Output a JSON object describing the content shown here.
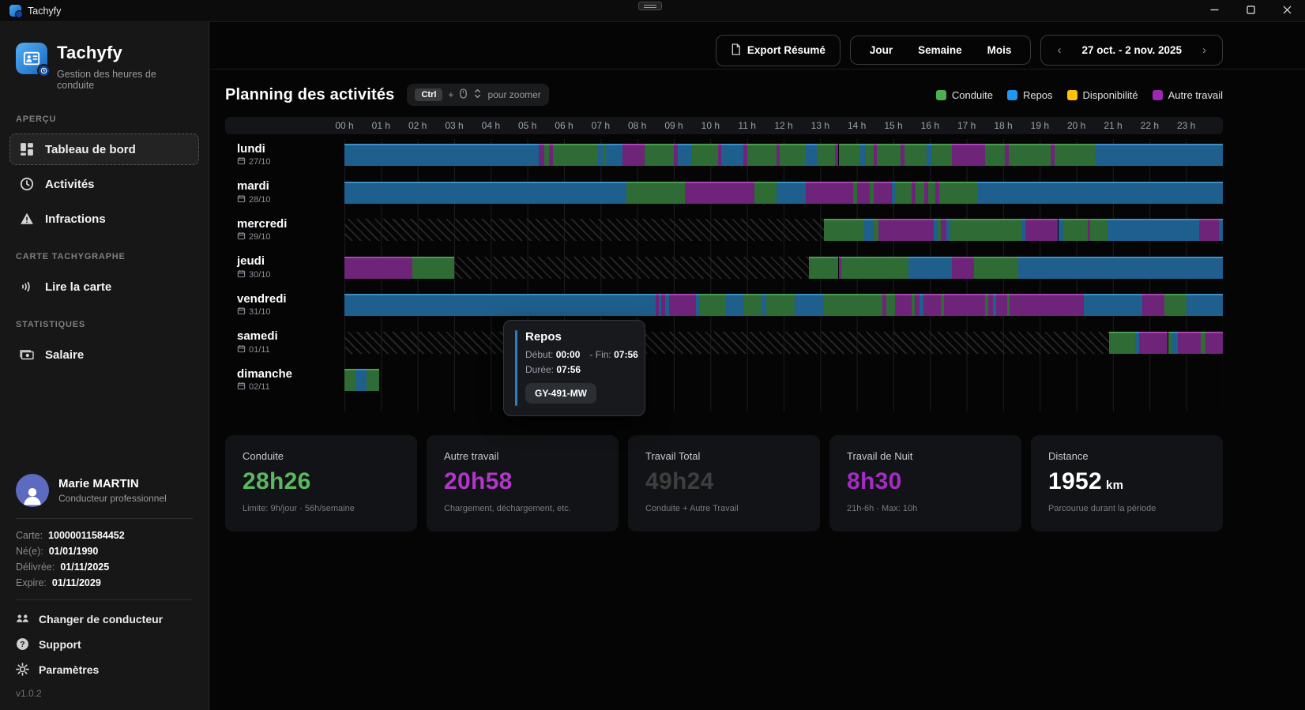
{
  "window": {
    "title": "Tachyfy"
  },
  "sidebar": {
    "app_name": "Tachyfy",
    "app_subtitle": "Gestion des heures de conduite",
    "sections": [
      {
        "label": "APERÇU",
        "items": [
          {
            "icon": "dashboard-icon",
            "label": "Tableau de bord",
            "active": true
          },
          {
            "icon": "clock-icon",
            "label": "Activités",
            "active": false
          },
          {
            "icon": "warning-icon",
            "label": "Infractions",
            "active": false
          }
        ]
      },
      {
        "label": "CARTE TACHYGRAPHE",
        "items": [
          {
            "icon": "contactless-icon",
            "label": "Lire la carte",
            "active": false
          }
        ]
      },
      {
        "label": "STATISTIQUES",
        "items": [
          {
            "icon": "banknote-icon",
            "label": "Salaire",
            "active": false
          }
        ]
      }
    ],
    "profile": {
      "name": "Marie MARTIN",
      "role": "Conducteur professionnel",
      "details": [
        {
          "label": "Carte:",
          "value": "10000011584452"
        },
        {
          "label": "Né(e):",
          "value": "01/01/1990"
        },
        {
          "label": "Délivrée:",
          "value": "01/11/2025"
        },
        {
          "label": "Expire:",
          "value": "01/11/2029"
        }
      ],
      "links": [
        {
          "icon": "switch-user-icon",
          "label": "Changer de conducteur"
        },
        {
          "icon": "help-icon",
          "label": "Support"
        },
        {
          "icon": "gear-icon",
          "label": "Paramètres"
        }
      ],
      "version": "v1.0.2"
    }
  },
  "header": {
    "export_label": "Export Résumé",
    "view_options": [
      "Jour",
      "Semaine",
      "Mois"
    ],
    "date_range": "27 oct. - 2 nov. 2025",
    "prev_glyph": "‹",
    "next_glyph": "›"
  },
  "chart_data": {
    "type": "timeline",
    "title": "Planning des activités",
    "zoom_hint": {
      "key": "Ctrl",
      "plus": "+",
      "text": "pour zoomer"
    },
    "legend": [
      {
        "key": "c",
        "label": "Conduite",
        "color": "#4caf50"
      },
      {
        "key": "r",
        "label": "Repos",
        "color": "#2196f3"
      },
      {
        "key": "d",
        "label": "Disponibilité",
        "color": "#ffc107"
      },
      {
        "key": "a",
        "label": "Autre travail",
        "color": "#9c27b0"
      }
    ],
    "bar_colors": {
      "c": "#2f6b34",
      "r": "#1e5f8e",
      "a": "#6e2478"
    },
    "x_range_hours": [
      0,
      24
    ],
    "hours": [
      "00 h",
      "01 h",
      "02 h",
      "03 h",
      "04 h",
      "05 h",
      "06 h",
      "07 h",
      "08 h",
      "09 h",
      "10 h",
      "11 h",
      "12 h",
      "13 h",
      "14 h",
      "15 h",
      "16 h",
      "17 h",
      "18 h",
      "19 h",
      "20 h",
      "21 h",
      "22 h",
      "23 h"
    ],
    "days": [
      {
        "label": "lundi",
        "date": "27/10",
        "hatch": null,
        "segments": [
          [
            0,
            5.3,
            "r"
          ],
          [
            5.3,
            5.45,
            "a"
          ],
          [
            5.45,
            5.6,
            "c"
          ],
          [
            5.6,
            5.7,
            "a"
          ],
          [
            5.7,
            6.9,
            "c"
          ],
          [
            6.9,
            7.05,
            "r"
          ],
          [
            7.05,
            7.15,
            "c"
          ],
          [
            7.15,
            7.6,
            "r"
          ],
          [
            7.6,
            8.2,
            "a"
          ],
          [
            8.2,
            9.0,
            "c"
          ],
          [
            9.0,
            9.1,
            "a"
          ],
          [
            9.1,
            9.5,
            "r"
          ],
          [
            9.5,
            10.2,
            "c"
          ],
          [
            10.2,
            10.3,
            "a"
          ],
          [
            10.3,
            10.9,
            "r"
          ],
          [
            10.9,
            11.0,
            "a"
          ],
          [
            11.0,
            11.8,
            "c"
          ],
          [
            11.8,
            11.9,
            "a"
          ],
          [
            11.9,
            12.6,
            "c"
          ],
          [
            12.6,
            12.9,
            "r"
          ],
          [
            12.9,
            13.4,
            "c"
          ],
          [
            13.4,
            13.5,
            "a"
          ],
          [
            13.5,
            14.1,
            "c"
          ],
          [
            14.1,
            14.25,
            "r"
          ],
          [
            14.25,
            14.45,
            "c"
          ],
          [
            14.45,
            14.55,
            "a"
          ],
          [
            14.55,
            15.2,
            "c"
          ],
          [
            15.2,
            15.3,
            "a"
          ],
          [
            15.3,
            15.9,
            "c"
          ],
          [
            15.9,
            16.05,
            "r"
          ],
          [
            16.05,
            16.6,
            "c"
          ],
          [
            16.6,
            17.5,
            "a"
          ],
          [
            17.5,
            18.05,
            "c"
          ],
          [
            18.05,
            18.15,
            "a"
          ],
          [
            18.15,
            19.3,
            "c"
          ],
          [
            19.3,
            19.4,
            "a"
          ],
          [
            19.4,
            20.5,
            "c"
          ],
          [
            20.5,
            24,
            "r"
          ]
        ]
      },
      {
        "label": "mardi",
        "date": "28/10",
        "hatch": null,
        "segments": [
          [
            0,
            7.7,
            "r"
          ],
          [
            7.7,
            9.3,
            "c"
          ],
          [
            9.3,
            11.2,
            "a"
          ],
          [
            11.2,
            11.8,
            "c"
          ],
          [
            11.8,
            12.6,
            "r"
          ],
          [
            12.6,
            13.9,
            "a"
          ],
          [
            13.9,
            14.0,
            "c"
          ],
          [
            14.0,
            14.35,
            "a"
          ],
          [
            14.35,
            14.45,
            "c"
          ],
          [
            14.45,
            14.95,
            "a"
          ],
          [
            14.95,
            15.05,
            "r"
          ],
          [
            15.05,
            15.5,
            "c"
          ],
          [
            15.5,
            15.6,
            "a"
          ],
          [
            15.6,
            15.85,
            "c"
          ],
          [
            15.85,
            15.95,
            "a"
          ],
          [
            15.95,
            16.15,
            "c"
          ],
          [
            16.15,
            16.25,
            "a"
          ],
          [
            16.25,
            17.3,
            "c"
          ],
          [
            17.3,
            24,
            "r"
          ]
        ]
      },
      {
        "label": "mercredi",
        "date": "29/10",
        "hatch": [
          0,
          13.1
        ],
        "segments": [
          [
            13.1,
            14.2,
            "c"
          ],
          [
            14.2,
            14.45,
            "r"
          ],
          [
            14.45,
            14.6,
            "c"
          ],
          [
            14.6,
            16.1,
            "a"
          ],
          [
            16.1,
            16.2,
            "r"
          ],
          [
            16.2,
            16.3,
            "c"
          ],
          [
            16.3,
            16.45,
            "a"
          ],
          [
            16.45,
            16.55,
            "r"
          ],
          [
            16.55,
            18.5,
            "c"
          ],
          [
            18.5,
            18.6,
            "r"
          ],
          [
            18.6,
            19.5,
            "a"
          ],
          [
            19.5,
            19.65,
            "r"
          ],
          [
            19.65,
            20.3,
            "c"
          ],
          [
            20.3,
            20.38,
            "a"
          ],
          [
            20.38,
            20.85,
            "c"
          ],
          [
            20.85,
            23.35,
            "r"
          ],
          [
            23.35,
            23.9,
            "a"
          ],
          [
            23.9,
            24,
            "r"
          ]
        ]
      },
      {
        "label": "jeudi",
        "date": "30/10",
        "hatch": [
          3,
          12.7
        ],
        "segments": [
          [
            0,
            1.85,
            "a"
          ],
          [
            1.85,
            3.0,
            "c"
          ],
          [
            12.7,
            13.5,
            "c"
          ],
          [
            13.5,
            13.58,
            "a"
          ],
          [
            13.58,
            15.4,
            "c"
          ],
          [
            15.4,
            16.6,
            "r"
          ],
          [
            16.6,
            17.2,
            "a"
          ],
          [
            17.2,
            18.4,
            "c"
          ],
          [
            18.4,
            24,
            "r"
          ]
        ]
      },
      {
        "label": "vendredi",
        "date": "31/10",
        "hatch": null,
        "segments": [
          [
            0,
            8.5,
            "r"
          ],
          [
            8.5,
            8.58,
            "a"
          ],
          [
            8.58,
            8.66,
            "r"
          ],
          [
            8.66,
            8.76,
            "a"
          ],
          [
            8.76,
            8.86,
            "r"
          ],
          [
            8.86,
            9.6,
            "a"
          ],
          [
            9.6,
            9.72,
            "r"
          ],
          [
            9.72,
            10.4,
            "c"
          ],
          [
            10.4,
            10.9,
            "r"
          ],
          [
            10.9,
            11.4,
            "c"
          ],
          [
            11.4,
            11.52,
            "r"
          ],
          [
            11.52,
            12.3,
            "c"
          ],
          [
            12.3,
            13.1,
            "r"
          ],
          [
            13.1,
            14.7,
            "c"
          ],
          [
            14.7,
            14.8,
            "a"
          ],
          [
            14.8,
            15.05,
            "c"
          ],
          [
            15.05,
            15.5,
            "a"
          ],
          [
            15.5,
            15.58,
            "c"
          ],
          [
            15.58,
            15.72,
            "a"
          ],
          [
            15.72,
            15.82,
            "r"
          ],
          [
            15.82,
            16.3,
            "a"
          ],
          [
            16.3,
            16.38,
            "c"
          ],
          [
            16.38,
            17.5,
            "a"
          ],
          [
            17.5,
            17.58,
            "c"
          ],
          [
            17.58,
            17.72,
            "a"
          ],
          [
            17.72,
            17.8,
            "r"
          ],
          [
            17.8,
            18.1,
            "a"
          ],
          [
            18.1,
            18.18,
            "c"
          ],
          [
            18.18,
            20.2,
            "a"
          ],
          [
            20.2,
            21.8,
            "r"
          ],
          [
            21.8,
            22.4,
            "a"
          ],
          [
            22.4,
            23.0,
            "c"
          ],
          [
            23.0,
            24,
            "r"
          ]
        ]
      },
      {
        "label": "samedi",
        "date": "01/11",
        "hatch": [
          0,
          20.9
        ],
        "segments": [
          [
            20.9,
            21.6,
            "c"
          ],
          [
            21.6,
            21.72,
            "r"
          ],
          [
            21.72,
            22.5,
            "a"
          ],
          [
            22.5,
            22.62,
            "c"
          ],
          [
            22.62,
            22.78,
            "r"
          ],
          [
            22.78,
            23.4,
            "a"
          ],
          [
            23.4,
            23.52,
            "c"
          ],
          [
            23.52,
            24,
            "a"
          ]
        ]
      },
      {
        "label": "dimanche",
        "date": "02/11",
        "hatch": null,
        "segments": [
          [
            0,
            0.3,
            "c"
          ],
          [
            0.3,
            0.6,
            "r"
          ],
          [
            0.6,
            0.95,
            "c"
          ]
        ]
      }
    ],
    "tooltip": {
      "title": "Repos",
      "start_label": "Début:",
      "start": "00:00",
      "end_label": "- Fin:",
      "end": "07:56",
      "duration_label": "Durée:",
      "duration": "07:56",
      "vehicle": "GY-491-MW"
    }
  },
  "stats": {
    "cards": [
      {
        "title": "Conduite",
        "value": "28h26",
        "unit": "",
        "color": "#5cb860",
        "subtitle": "Limite: 9h/jour · 56h/semaine"
      },
      {
        "title": "Autre travail",
        "value": "20h58",
        "unit": "",
        "color": "#b136c9",
        "subtitle": "Chargement, déchargement, etc."
      },
      {
        "title": "Travail Total",
        "value": "49h24",
        "unit": "",
        "color": "#3e3e3e",
        "subtitle": "Conduite + Autre Travail"
      },
      {
        "title": "Travail de Nuit",
        "value": "8h30",
        "unit": "",
        "color": "#a32cc4",
        "subtitle": "21h-6h · Max: 10h"
      },
      {
        "title": "Distance",
        "value": "1952",
        "unit": "km",
        "color": "#ffffff",
        "subtitle": "Parcourue durant la période"
      }
    ]
  }
}
